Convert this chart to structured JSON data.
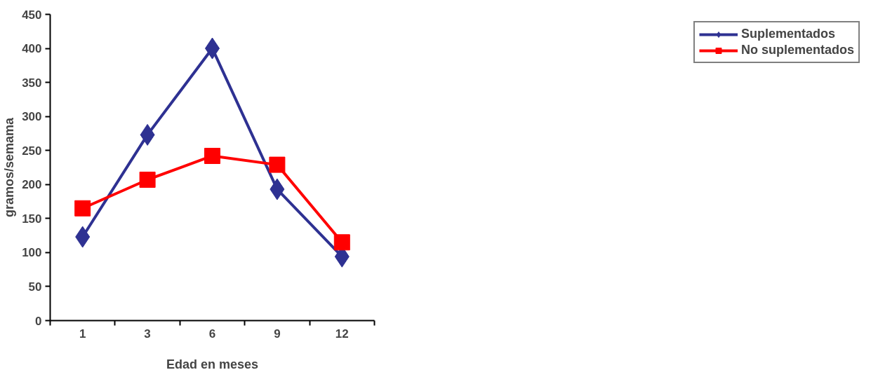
{
  "chart_data": {
    "type": "line",
    "xlabel": "Edad en meses",
    "ylabel": "gramos/semama",
    "categories": [
      "1",
      "3",
      "6",
      "9",
      "12"
    ],
    "series": [
      {
        "name": "Suplementados",
        "color": "#2e3192",
        "marker": "diamond",
        "values": [
          123,
          273,
          400,
          193,
          94
        ]
      },
      {
        "name": "No suplementados",
        "color": "#ff0000",
        "marker": "square",
        "values": [
          165,
          207,
          242,
          229,
          115
        ]
      }
    ],
    "ylim": [
      0,
      450
    ],
    "yticks": [
      0,
      50,
      100,
      150,
      200,
      250,
      300,
      350,
      400,
      450
    ],
    "grid": false,
    "legend": "right",
    "line_style": "solid"
  }
}
